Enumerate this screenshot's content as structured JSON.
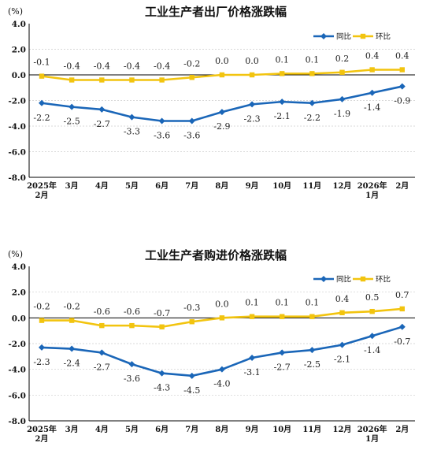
{
  "chart_data": [
    {
      "type": "line",
      "title": "工业生产者出厂价格涨跌幅",
      "unit": "(%)",
      "x_labels": [
        [
          "2025年",
          "2月"
        ],
        [
          "3月"
        ],
        [
          "4月"
        ],
        [
          "5月"
        ],
        [
          "6月"
        ],
        [
          "7月"
        ],
        [
          "8月"
        ],
        [
          "9月"
        ],
        [
          "10月"
        ],
        [
          "11月"
        ],
        [
          "12月"
        ],
        [
          "2026年",
          "1月"
        ],
        [
          "2月"
        ]
      ],
      "ylim": [
        -8.0,
        4.0
      ],
      "yticks": [
        "4.0",
        "2.0",
        "0.0",
        "-2.0",
        "-4.0",
        "-6.0",
        "-8.0"
      ],
      "legend": "top-right",
      "grid": true,
      "series": [
        {
          "name": "同比",
          "color": "#1a66b8",
          "marker": "diamond",
          "values": [
            -2.2,
            -2.5,
            -2.7,
            -3.3,
            -3.6,
            -3.6,
            -2.9,
            -2.3,
            -2.1,
            -2.2,
            -1.9,
            -1.4,
            -0.9
          ],
          "labels": [
            "-2.2",
            "-2.5",
            "-2.7",
            "-3.3",
            "-3.6",
            "-3.6",
            "-2.9",
            "-2.3",
            "-2.1",
            "-2.2",
            "-1.9",
            "-1.4",
            "-0.9"
          ]
        },
        {
          "name": "环比",
          "color": "#f2c40f",
          "marker": "square",
          "values": [
            -0.1,
            -0.4,
            -0.4,
            -0.4,
            -0.4,
            -0.2,
            0.0,
            0.0,
            0.1,
            0.1,
            0.2,
            0.4,
            0.4
          ],
          "labels": [
            "-0.1",
            "-0.4",
            "-0.4",
            "-0.4",
            "-0.4",
            "-0.2",
            "0.0",
            "0.0",
            "0.1",
            "0.1",
            "0.2",
            "0.4",
            "0.4"
          ]
        }
      ]
    },
    {
      "type": "line",
      "title": "工业生产者购进价格涨跌幅",
      "unit": "(%)",
      "x_labels": [
        [
          "2025年",
          "2月"
        ],
        [
          "3月"
        ],
        [
          "4月"
        ],
        [
          "5月"
        ],
        [
          "6月"
        ],
        [
          "7月"
        ],
        [
          "8月"
        ],
        [
          "9月"
        ],
        [
          "10月"
        ],
        [
          "11月"
        ],
        [
          "12月"
        ],
        [
          "2026年",
          "1月"
        ],
        [
          "2月"
        ]
      ],
      "ylim": [
        -8.0,
        4.0
      ],
      "yticks": [
        "4.0",
        "2.0",
        "0.0",
        "-2.0",
        "-4.0",
        "-6.0",
        "-8.0"
      ],
      "legend": "top-right",
      "grid": true,
      "series": [
        {
          "name": "同比",
          "color": "#1a66b8",
          "marker": "diamond",
          "values": [
            -2.3,
            -2.4,
            -2.7,
            -3.6,
            -4.3,
            -4.5,
            -4.0,
            -3.1,
            -2.7,
            -2.5,
            -2.1,
            -1.4,
            -0.7
          ],
          "labels": [
            "-2.3",
            "-2.4",
            "-2.7",
            "-3.6",
            "-4.3",
            "-4.5",
            "-4.0",
            "-3.1",
            "-2.7",
            "-2.5",
            "-2.1",
            "-1.4",
            "-0.7"
          ]
        },
        {
          "name": "环比",
          "color": "#f2c40f",
          "marker": "square",
          "values": [
            -0.2,
            -0.2,
            -0.6,
            -0.6,
            -0.7,
            -0.3,
            0.0,
            0.1,
            0.1,
            0.1,
            0.4,
            0.5,
            0.7
          ],
          "labels": [
            "-0.2",
            "-0.2",
            "-0.6",
            "-0.6",
            "-0.7",
            "-0.3",
            "0.0",
            "0.1",
            "0.1",
            "0.1",
            "0.4",
            "0.5",
            "0.7"
          ]
        }
      ]
    }
  ]
}
